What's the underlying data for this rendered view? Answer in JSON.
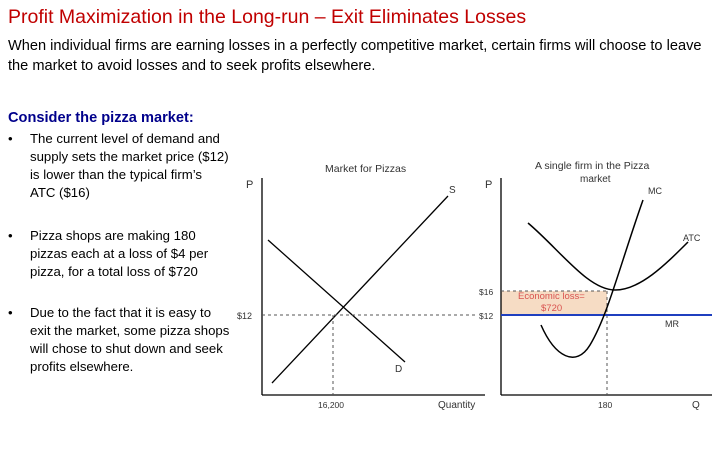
{
  "slide": {
    "title": "Profit Maximization in the Long-run – Exit Eliminates Losses",
    "intro": "When individual firms are earning losses in a perfectly competitive market, certain firms will choose to leave the market to avoid losses and to seek profits elsewhere.",
    "subhead": "Consider the pizza market:",
    "bullet_symbol": "•",
    "bullets": [
      "The current level of demand and supply sets the market price ($12) is lower than the typical firm’s ATC ($16)",
      "Pizza shops are making 180 pizzas each at a loss of $4 per pizza, for a total loss of $720",
      "Due to the fact that it is easy to exit the market, some pizza shops will chose to shut down and seek profits elsewhere."
    ]
  },
  "market_graph": {
    "title": "Market for Pizzas",
    "y_label": "P",
    "x_label": "Quantity",
    "price_label": "$12",
    "quantity_label": "16,200",
    "supply_label": "S",
    "demand_label": "D",
    "equilibrium": {
      "price": 12,
      "quantity": 16200
    }
  },
  "firm_graph": {
    "title_line1": "A single firm in the Pizza",
    "title_line2": "market",
    "y_label": "P",
    "x_label": "Q",
    "atc_price_label": "$16",
    "market_price_label": "$12",
    "quantity_label": "180",
    "mc_label": "MC",
    "atc_label": "ATC",
    "mr_label": "MR",
    "loss_label_line1": "Economic loss=",
    "loss_label_line2": "$720",
    "atc_price": 16,
    "market_price": 12,
    "quantity": 180,
    "economic_loss": 720
  },
  "colors": {
    "title": "#c00000",
    "subhead": "#00008b",
    "mr_line": "#1f3fbf",
    "loss_fill": "#f6dcc4",
    "loss_text": "#d9534f",
    "axis": "#000000"
  }
}
